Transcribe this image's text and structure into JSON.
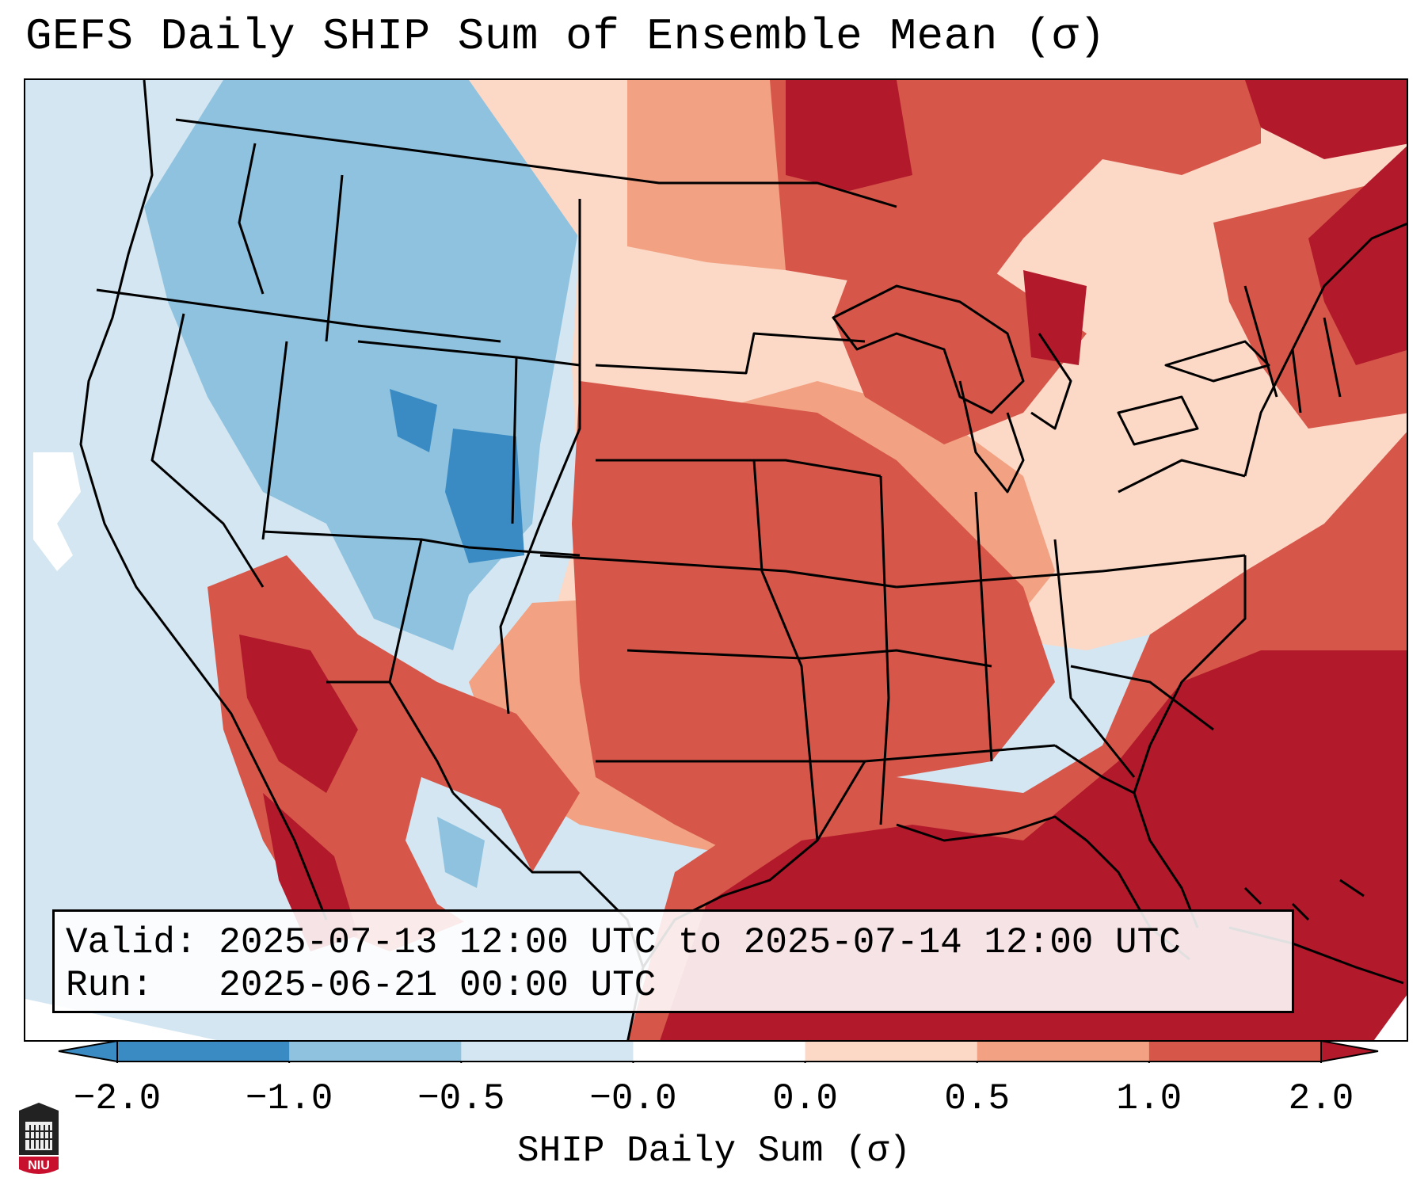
{
  "title": "GEFS Daily SHIP Sum of Ensemble Mean (σ)",
  "info": {
    "valid": "Valid: 2025-07-13 12:00 UTC to 2025-07-14 12:00 UTC",
    "run": "Run:   2025-06-21 00:00 UTC"
  },
  "colorbar": {
    "label": "SHIP Daily Sum (σ)",
    "ticks": [
      "−2.0",
      "−1.0",
      "−0.5",
      "−0.0",
      "0.0",
      "0.5",
      "1.0",
      "2.0"
    ],
    "colors": [
      "#3a8bc3",
      "#8ec2df",
      "#d3e6f1",
      "#ffffff",
      "#fcd9c6",
      "#f2a283",
      "#d6574a",
      "#b2192b"
    ]
  },
  "logo": {
    "text": "NIU",
    "icon": "niu-logo-icon"
  }
}
